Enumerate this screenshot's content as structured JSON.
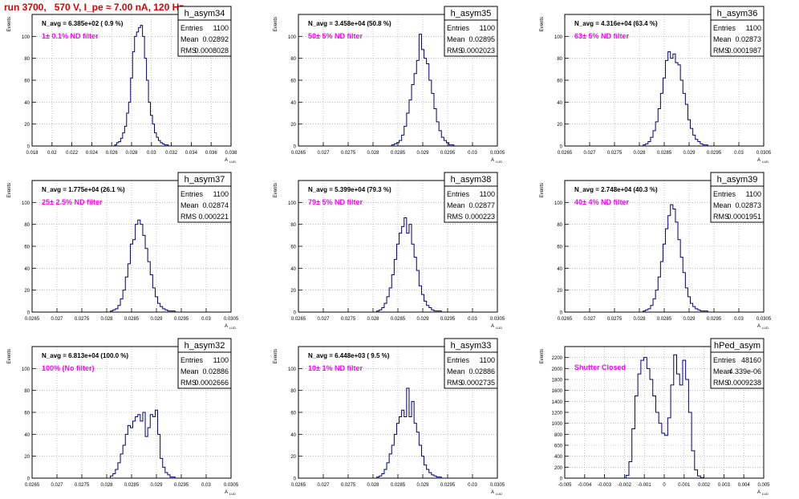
{
  "run_title": "run 3700,   570 V, I_pe ≈ 7.00 nA, 120 Hz",
  "y_axis_label": "Events",
  "x_axis_label": "A",
  "x_axis_label_sub": "LUD",
  "stats_labels": {
    "entries": "Entries",
    "mean": "Mean",
    "rms": "RMS"
  },
  "colors": {
    "histogram": "#00007a",
    "annotation": "#ff00ff",
    "title": "#e00000",
    "grid": "#999999"
  },
  "chart_data": [
    {
      "type": "bar",
      "name": "h_asym34",
      "navg_text": "N_avg = 6.385e+02 ( 0.9 %)",
      "filter_text": "1± 0.1% ND filter",
      "stats": {
        "entries": "1100",
        "mean": "0.02892",
        "rms": "0.0008028"
      },
      "xlim": [
        0.018,
        0.038
      ],
      "xticks": [
        "0.018",
        "0.02",
        "0.022",
        "0.024",
        "0.026",
        "0.028",
        "0.03",
        "0.032",
        "0.034",
        "0.036",
        "0.038"
      ],
      "ylim": [
        0,
        120
      ],
      "yticks": [
        "0",
        "20",
        "40",
        "60",
        "80",
        "100"
      ],
      "x": [
        0.0264,
        0.0266,
        0.0268,
        0.027,
        0.0272,
        0.0274,
        0.0276,
        0.0278,
        0.028,
        0.0282,
        0.0284,
        0.0286,
        0.0288,
        0.029,
        0.0292,
        0.0294,
        0.0296,
        0.0298,
        0.03,
        0.0302,
        0.0304,
        0.0306,
        0.0308,
        0.031,
        0.0312,
        0.0314,
        0.0316
      ],
      "values": [
        1,
        3,
        4,
        7,
        12,
        18,
        30,
        40,
        62,
        86,
        100,
        104,
        108,
        110,
        100,
        80,
        60,
        40,
        28,
        20,
        12,
        8,
        5,
        3,
        2,
        1,
        1
      ]
    },
    {
      "type": "bar",
      "name": "h_asym35",
      "navg_text": "N_avg = 3.458e+04 (50.8 %)",
      "filter_text": "50± 5% ND filter",
      "stats": {
        "entries": "1100",
        "mean": "0.02895",
        "rms": "0.0002023"
      },
      "xlim": [
        0.0265,
        0.0305
      ],
      "xticks": [
        "0.0265",
        "0.027",
        "0.0275",
        "0.028",
        "0.0285",
        "0.029",
        "0.0295",
        "0.03",
        "0.0305"
      ],
      "ylim": [
        0,
        120
      ],
      "yticks": [
        "0",
        "20",
        "40",
        "60",
        "80",
        "100"
      ],
      "x": [
        0.0284,
        0.02845,
        0.0285,
        0.02855,
        0.0286,
        0.02865,
        0.0287,
        0.02875,
        0.0288,
        0.02885,
        0.0289,
        0.02895,
        0.029,
        0.02905,
        0.0291,
        0.02915,
        0.0292,
        0.02925,
        0.0293,
        0.02935,
        0.0294,
        0.02945,
        0.0295,
        0.02955,
        0.0296
      ],
      "values": [
        1,
        2,
        3,
        5,
        10,
        18,
        30,
        42,
        56,
        66,
        78,
        102,
        88,
        80,
        75,
        60,
        48,
        34,
        22,
        14,
        8,
        5,
        3,
        1,
        1
      ]
    },
    {
      "type": "bar",
      "name": "h_asym36",
      "navg_text": "N_avg = 4.316e+04 (63.4 %)",
      "filter_text": "63± 5% ND filter",
      "stats": {
        "entries": "1100",
        "mean": "0.02873",
        "rms": "0.0001987"
      },
      "xlim": [
        0.0265,
        0.0305
      ],
      "xticks": [
        "0.0265",
        "0.027",
        "0.0275",
        "0.028",
        "0.0285",
        "0.029",
        "0.0295",
        "0.03",
        "0.0305"
      ],
      "ylim": [
        0,
        120
      ],
      "yticks": [
        "0",
        "20",
        "40",
        "60",
        "80",
        "100"
      ],
      "x": [
        0.0281,
        0.02815,
        0.0282,
        0.02825,
        0.0283,
        0.02835,
        0.0284,
        0.02845,
        0.0285,
        0.02855,
        0.0286,
        0.02865,
        0.0287,
        0.02875,
        0.0288,
        0.02885,
        0.0289,
        0.02895,
        0.029,
        0.02905,
        0.0291,
        0.02915,
        0.0292,
        0.02925,
        0.0293,
        0.02935
      ],
      "values": [
        1,
        2,
        4,
        8,
        14,
        22,
        34,
        48,
        62,
        78,
        86,
        80,
        84,
        76,
        74,
        60,
        48,
        38,
        24,
        16,
        10,
        6,
        4,
        2,
        1,
        1
      ]
    },
    {
      "type": "bar",
      "name": "h_asym37",
      "navg_text": "N_avg = 1.775e+04 (26.1 %)",
      "filter_text": "25± 2.5% ND filter",
      "stats": {
        "entries": "1100",
        "mean": "0.02874",
        "rms": "0.000221"
      },
      "xlim": [
        0.0265,
        0.0305
      ],
      "xticks": [
        "0.0265",
        "0.027",
        "0.0275",
        "0.028",
        "0.0285",
        "0.029",
        "0.0295",
        "0.03",
        "0.0305"
      ],
      "ylim": [
        0,
        120
      ],
      "yticks": [
        "0",
        "20",
        "40",
        "60",
        "80",
        "100"
      ],
      "x": [
        0.0281,
        0.02815,
        0.0282,
        0.02825,
        0.0283,
        0.02835,
        0.0284,
        0.02845,
        0.0285,
        0.02855,
        0.0286,
        0.02865,
        0.0287,
        0.02875,
        0.0288,
        0.02885,
        0.0289,
        0.02895,
        0.029,
        0.02905,
        0.0291,
        0.02915,
        0.0292,
        0.02925,
        0.0293,
        0.02935
      ],
      "values": [
        1,
        2,
        3,
        6,
        12,
        20,
        32,
        44,
        62,
        66,
        80,
        84,
        80,
        70,
        58,
        46,
        34,
        22,
        14,
        8,
        5,
        3,
        2,
        1,
        1,
        1
      ]
    },
    {
      "type": "bar",
      "name": "h_asym38",
      "navg_text": "N_avg = 5.399e+04 (79.3 %)",
      "filter_text": "79± 5% ND filter",
      "stats": {
        "entries": "1100",
        "mean": "0.02877",
        "rms": "0.000223"
      },
      "xlim": [
        0.0265,
        0.0305
      ],
      "xticks": [
        "0.0265",
        "0.027",
        "0.0275",
        "0.028",
        "0.0285",
        "0.029",
        "0.0295",
        "0.03",
        "0.0305"
      ],
      "ylim": [
        0,
        120
      ],
      "yticks": [
        "0",
        "20",
        "40",
        "60",
        "80",
        "100"
      ],
      "x": [
        0.0281,
        0.02815,
        0.0282,
        0.02825,
        0.0283,
        0.02835,
        0.0284,
        0.02845,
        0.0285,
        0.02855,
        0.0286,
        0.02865,
        0.0287,
        0.02875,
        0.0288,
        0.02885,
        0.0289,
        0.02895,
        0.029,
        0.02905,
        0.0291,
        0.02915,
        0.0292,
        0.02925,
        0.0293,
        0.02935
      ],
      "values": [
        1,
        2,
        4,
        8,
        14,
        22,
        34,
        48,
        62,
        72,
        78,
        86,
        72,
        80,
        62,
        50,
        38,
        24,
        16,
        10,
        6,
        4,
        2,
        1,
        1,
        1
      ]
    },
    {
      "type": "bar",
      "name": "h_asym39",
      "navg_text": "N_avg = 2.748e+04 (40.3 %)",
      "filter_text": "40± 4% ND filter",
      "stats": {
        "entries": "1100",
        "mean": "0.02873",
        "rms": "0.0001951"
      },
      "xlim": [
        0.0265,
        0.0305
      ],
      "xticks": [
        "0.0265",
        "0.027",
        "0.0275",
        "0.028",
        "0.0285",
        "0.029",
        "0.0295",
        "0.03",
        "0.0305"
      ],
      "ylim": [
        0,
        120
      ],
      "yticks": [
        "0",
        "20",
        "40",
        "60",
        "80",
        "100"
      ],
      "x": [
        0.0281,
        0.02815,
        0.0282,
        0.02825,
        0.0283,
        0.02835,
        0.0284,
        0.02845,
        0.0285,
        0.02855,
        0.0286,
        0.02865,
        0.0287,
        0.02875,
        0.0288,
        0.02885,
        0.0289,
        0.02895,
        0.029,
        0.02905,
        0.0291,
        0.02915,
        0.0292,
        0.02925,
        0.0293,
        0.02935
      ],
      "values": [
        1,
        2,
        3,
        6,
        12,
        20,
        32,
        46,
        62,
        76,
        88,
        98,
        94,
        82,
        66,
        50,
        36,
        22,
        14,
        8,
        5,
        3,
        2,
        1,
        1,
        1
      ]
    },
    {
      "type": "bar",
      "name": "h_asym32",
      "navg_text": "N_avg = 6.813e+04 (100.0 %)",
      "filter_text": "100% (No filter)",
      "stats": {
        "entries": "1100",
        "mean": "0.02886",
        "rms": "0.0002666"
      },
      "xlim": [
        0.0265,
        0.0305
      ],
      "xticks": [
        "0.0265",
        "0.027",
        "0.0275",
        "0.028",
        "0.0285",
        "0.029",
        "0.0295",
        "0.03",
        "0.0305"
      ],
      "ylim": [
        0,
        120
      ],
      "yticks": [
        "0",
        "20",
        "40",
        "60",
        "80",
        "100"
      ],
      "x": [
        0.0281,
        0.02815,
        0.0282,
        0.02825,
        0.0283,
        0.02835,
        0.0284,
        0.02845,
        0.0285,
        0.02855,
        0.0286,
        0.02865,
        0.0287,
        0.02875,
        0.0288,
        0.02885,
        0.0289,
        0.02895,
        0.029,
        0.02905,
        0.0291,
        0.02915,
        0.0292,
        0.02925,
        0.0293,
        0.02935
      ],
      "values": [
        2,
        4,
        8,
        14,
        22,
        30,
        40,
        48,
        46,
        52,
        56,
        58,
        52,
        60,
        38,
        46,
        58,
        56,
        62,
        40,
        18,
        10,
        5,
        3,
        1,
        1
      ]
    },
    {
      "type": "bar",
      "name": "h_asym33",
      "navg_text": "N_avg = 6.448e+03 ( 9.5 %)",
      "filter_text": "10± 1% ND filter",
      "stats": {
        "entries": "1100",
        "mean": "0.02886",
        "rms": "0.0002735"
      },
      "xlim": [
        0.0265,
        0.0305
      ],
      "xticks": [
        "0.0265",
        "0.027",
        "0.0275",
        "0.028",
        "0.0285",
        "0.029",
        "0.0295",
        "0.03",
        "0.0305"
      ],
      "ylim": [
        0,
        120
      ],
      "yticks": [
        "0",
        "20",
        "40",
        "60",
        "80",
        "100"
      ],
      "x": [
        0.0281,
        0.02815,
        0.0282,
        0.02825,
        0.0283,
        0.02835,
        0.0284,
        0.02845,
        0.0285,
        0.02855,
        0.0286,
        0.02865,
        0.0287,
        0.02875,
        0.0288,
        0.02885,
        0.0289,
        0.02895,
        0.029,
        0.02905,
        0.0291,
        0.02915,
        0.0292,
        0.02925,
        0.0293,
        0.02935
      ],
      "values": [
        1,
        2,
        4,
        8,
        14,
        22,
        30,
        40,
        50,
        56,
        62,
        56,
        82,
        56,
        70,
        50,
        42,
        30,
        20,
        12,
        8,
        5,
        3,
        2,
        1,
        1
      ]
    },
    {
      "type": "bar",
      "name": "hPed_asym",
      "navg_text": "",
      "filter_text": "Shutter Closed",
      "stats": {
        "entries": "48160",
        "mean": "4.339e-06",
        "rms": "0.0009238"
      },
      "xlim": [
        -0.005,
        0.005
      ],
      "xticks": [
        "-0.005",
        "-0.004",
        "-0.003",
        "-0.002",
        "-0.001",
        "0",
        "0.001",
        "0.002",
        "0.003",
        "0.004",
        "0.005"
      ],
      "ylim": [
        0,
        2400
      ],
      "yticks": [
        "0",
        "200",
        "400",
        "600",
        "800",
        "1000",
        "1200",
        "1400",
        "1600",
        "1800",
        "2000",
        "2200"
      ],
      "x": [
        -0.00185,
        -0.0017,
        -0.00155,
        -0.0014,
        -0.00125,
        -0.0011,
        -0.00095,
        -0.0008,
        -0.00065,
        -0.0005,
        -0.00035,
        -0.0002,
        -5e-05,
        0.0001,
        0.00025,
        0.0004,
        0.00055,
        0.0007,
        0.00085,
        0.001,
        0.00115,
        0.0013,
        0.00145,
        0.0016,
        0.00175,
        0.0019
      ],
      "values": [
        50,
        300,
        900,
        1500,
        1900,
        2150,
        2200,
        2000,
        1800,
        1500,
        1200,
        1000,
        820,
        780,
        1100,
        1700,
        2250,
        1900,
        1700,
        2150,
        1800,
        1200,
        500,
        150,
        40,
        10
      ]
    }
  ]
}
